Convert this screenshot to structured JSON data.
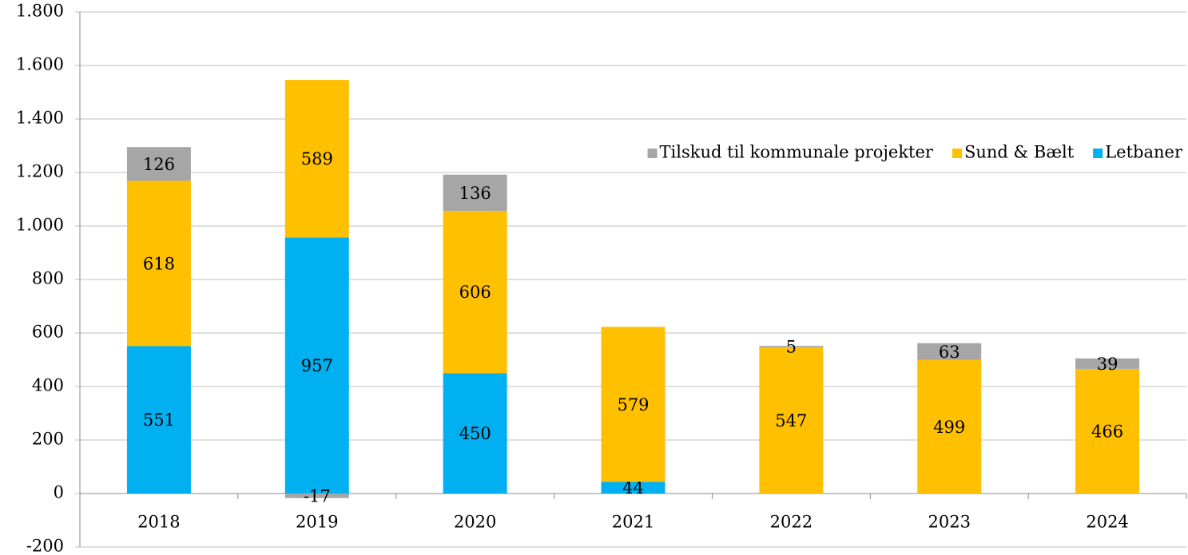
{
  "chart_data": {
    "type": "stacked_bar",
    "categories": [
      "2018",
      "2019",
      "2020",
      "2021",
      "2022",
      "2023",
      "2024"
    ],
    "series": [
      {
        "name": "Letbaner",
        "color": "#00b0f0",
        "values": [
          551,
          957,
          450,
          44,
          null,
          null,
          null
        ]
      },
      {
        "name": "Sund & Bælt",
        "color": "#ffc000",
        "values": [
          618,
          589,
          606,
          579,
          547,
          499,
          466
        ]
      },
      {
        "name": "Tilskud til kommunale projekter",
        "color": "#a6a6a6",
        "values": [
          126,
          -17,
          136,
          null,
          5,
          63,
          39
        ]
      }
    ],
    "ylim": [
      -200,
      1800
    ],
    "yticks": [
      -200,
      0,
      200,
      400,
      600,
      800,
      {
        "value": 1000,
        "label": "1.000"
      },
      {
        "value": 1200,
        "label": "1.200"
      },
      {
        "value": 1400,
        "label": "1.400"
      },
      {
        "value": 1600,
        "label": "1.600"
      },
      {
        "value": 1800,
        "label": "1.800"
      }
    ],
    "grid": true,
    "legend": "upper right",
    "legend_order": "reversed"
  }
}
